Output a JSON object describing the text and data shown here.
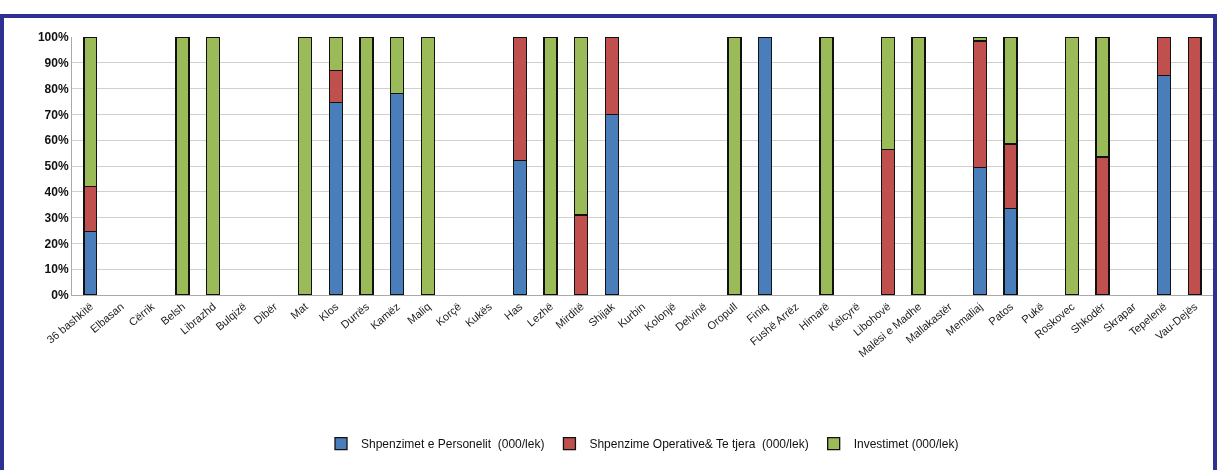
{
  "chart_data": {
    "type": "bar",
    "stacked": true,
    "categories": [
      "36 bashkitë",
      "Elbasan",
      "Cërrik",
      "Belsh",
      "Librazhd",
      "Bulqizë",
      "Dibër",
      "Mat",
      "Klos",
      "Durrës",
      "Kamëz",
      "Maliq",
      "Korçë",
      "Kukës",
      "Has",
      "Lezhë",
      "Mirditë",
      "Shijak",
      "Kurbin",
      "Kolonjë",
      "Delvinë",
      "Oropull",
      "Finiq",
      "Fushë Arrëz",
      "Himarë",
      "Këlcyrë",
      "Libohovë",
      "Malësi e Madhe",
      "Mallakastër",
      "Memaliaj",
      "Patos",
      "Pukë",
      "Roskovec",
      "Shkodër",
      "Skrapar",
      "Tepelenë",
      "Vau-Dejës"
    ],
    "series": [
      {
        "name": "Shpenzimet e Personelit  (000/lek)",
        "color": "#4a7ebb",
        "values": [
          24.5,
          null,
          null,
          null,
          null,
          null,
          null,
          null,
          74.5,
          null,
          78,
          null,
          null,
          null,
          52,
          null,
          null,
          70,
          null,
          null,
          null,
          null,
          100,
          null,
          null,
          null,
          null,
          null,
          null,
          49.5,
          33.5,
          null,
          null,
          null,
          null,
          85,
          null
        ]
      },
      {
        "name": "Shpenzime Operative& Te tjera  (000/lek)",
        "color": "#c0504d",
        "values": [
          17.5,
          null,
          null,
          null,
          null,
          null,
          null,
          null,
          12.5,
          null,
          null,
          null,
          null,
          null,
          48,
          null,
          31,
          30,
          null,
          null,
          null,
          null,
          null,
          null,
          null,
          null,
          56.5,
          null,
          null,
          49,
          25,
          null,
          null,
          53.5,
          null,
          15,
          100
        ]
      },
      {
        "name": "Investimet (000/lek)",
        "color": "#9bbb59",
        "values": [
          58,
          null,
          null,
          100,
          100,
          null,
          null,
          100,
          13,
          100,
          22,
          100,
          null,
          null,
          null,
          100,
          69,
          null,
          null,
          null,
          null,
          100,
          null,
          null,
          100,
          null,
          43.5,
          100,
          null,
          1.5,
          41.5,
          null,
          100,
          46.5,
          null,
          null,
          null
        ]
      }
    ],
    "ylim": [
      0,
      100
    ],
    "yticks": [
      {
        "value": 0,
        "label": "0%"
      },
      {
        "value": 10,
        "label": "10%"
      },
      {
        "value": 20,
        "label": "20%"
      },
      {
        "value": 30,
        "label": "30%"
      },
      {
        "value": 40,
        "label": "40%"
      },
      {
        "value": 50,
        "label": "50%"
      },
      {
        "value": 60,
        "label": "60%"
      },
      {
        "value": 70,
        "label": "70%"
      },
      {
        "value": 80,
        "label": "80%"
      },
      {
        "value": 90,
        "label": "90%"
      },
      {
        "value": 100,
        "label": "100%"
      }
    ],
    "grid": "y",
    "legend": "bottom"
  }
}
